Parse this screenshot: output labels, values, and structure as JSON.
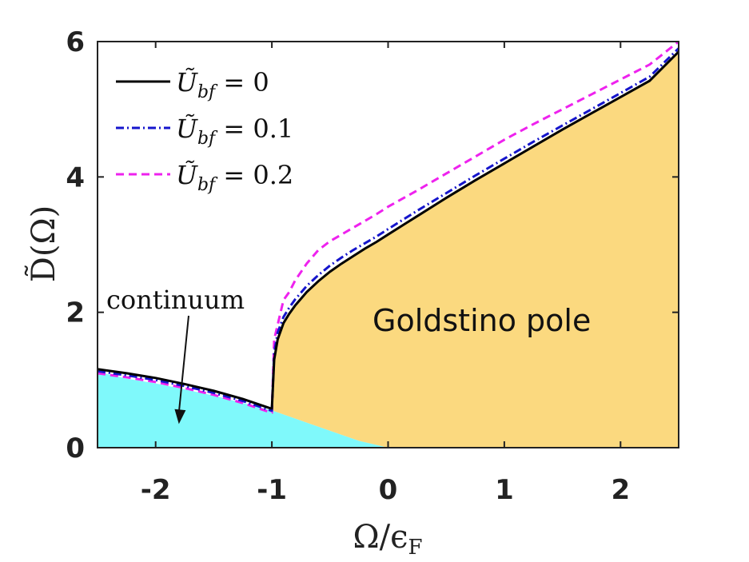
{
  "chart_data": {
    "type": "line",
    "xlabel_main": "Ω/ϵ",
    "xlabel_sub": "F",
    "ylabel": "D̃(Ω)",
    "xlim": [
      -2.5,
      2.5
    ],
    "ylim": [
      0,
      6
    ],
    "xticks": [
      -2,
      -1,
      0,
      1,
      2
    ],
    "xtick_labels": [
      "-2",
      "-1",
      "0",
      "1",
      "2"
    ],
    "yticks": [
      0,
      2,
      4,
      6
    ],
    "ytick_labels": [
      "0",
      "2",
      "4",
      "6"
    ],
    "grid": false,
    "legend_placement": "top-left",
    "legend_var": "Ũ",
    "legend_sub": "bf",
    "legend_op": "=",
    "series": [
      {
        "name": "0",
        "color": "#000000",
        "style": "solid",
        "x": [
          -2.5,
          -2.25,
          -2.0,
          -1.75,
          -1.5,
          -1.25,
          -1.01,
          -1.0,
          -0.98,
          -0.95,
          -0.9,
          -0.85,
          -0.8,
          -0.7,
          -0.6,
          -0.5,
          -0.4,
          -0.3,
          -0.2,
          -0.1,
          0.0,
          0.25,
          0.5,
          0.75,
          1.0,
          1.25,
          1.5,
          1.75,
          2.0,
          2.25,
          2.5
        ],
        "y": [
          1.16,
          1.1,
          1.03,
          0.94,
          0.84,
          0.72,
          0.58,
          0.58,
          1.3,
          1.6,
          1.84,
          1.98,
          2.1,
          2.3,
          2.46,
          2.6,
          2.72,
          2.83,
          2.94,
          3.04,
          3.15,
          3.42,
          3.69,
          3.95,
          4.2,
          4.45,
          4.7,
          4.94,
          5.18,
          5.42,
          5.85
        ]
      },
      {
        "name": "0.1",
        "color": "#1515cc",
        "style": "dashdot",
        "x": [
          -2.5,
          -2.25,
          -2.0,
          -1.75,
          -1.5,
          -1.25,
          -1.01,
          -1.0,
          -0.98,
          -0.95,
          -0.9,
          -0.85,
          -0.8,
          -0.7,
          -0.6,
          -0.5,
          -0.4,
          -0.3,
          -0.2,
          -0.1,
          0.0,
          0.25,
          0.5,
          0.75,
          1.0,
          1.25,
          1.5,
          1.75,
          2.0,
          2.25,
          2.5
        ],
        "y": [
          1.13,
          1.07,
          1.0,
          0.91,
          0.81,
          0.69,
          0.55,
          0.55,
          1.4,
          1.7,
          1.93,
          2.07,
          2.19,
          2.39,
          2.55,
          2.69,
          2.81,
          2.92,
          3.02,
          3.12,
          3.23,
          3.5,
          3.76,
          4.02,
          4.27,
          4.52,
          4.76,
          5.0,
          5.24,
          5.48,
          5.9
        ]
      },
      {
        "name": "0.2",
        "color": "#ee22ee",
        "style": "dashed",
        "x": [
          -2.5,
          -2.25,
          -2.0,
          -1.75,
          -1.5,
          -1.25,
          -1.01,
          -1.0,
          -0.98,
          -0.9,
          -0.85,
          -0.8,
          -0.7,
          -0.6,
          -0.5,
          -0.4,
          -0.3,
          -0.2,
          -0.1,
          0.0,
          0.25,
          0.5,
          0.75,
          1.0,
          1.25,
          1.5,
          1.75,
          2.0,
          2.25,
          2.5
        ],
        "y": [
          1.1,
          1.04,
          0.97,
          0.88,
          0.78,
          0.66,
          0.52,
          0.52,
          1.6,
          2.18,
          2.3,
          2.47,
          2.72,
          2.92,
          3.05,
          3.15,
          3.25,
          3.35,
          3.45,
          3.56,
          3.8,
          4.05,
          4.3,
          4.55,
          4.78,
          5.0,
          5.22,
          5.44,
          5.66,
          6.0
        ]
      }
    ],
    "continuum_region": {
      "color": "#7ff9fb",
      "x": [
        -2.5,
        -2.25,
        -2.0,
        -1.75,
        -1.5,
        -1.25,
        -1.0,
        -0.75,
        -0.5,
        -0.25,
        0.0
      ],
      "y": [
        1.12,
        1.02,
        0.95,
        0.86,
        0.77,
        0.66,
        0.55,
        0.4,
        0.25,
        0.1,
        0.0
      ]
    },
    "goldstino_region": {
      "color": "#fbd97f",
      "lower_x": [
        -1.0,
        -0.75,
        -0.5,
        -0.25,
        0.0,
        2.5
      ],
      "lower_y": [
        0.55,
        0.4,
        0.25,
        0.1,
        0.0,
        0.0
      ]
    },
    "annotations": [
      {
        "text": "continuum",
        "arrow_to_x": -1.8,
        "arrow_to_y": 0.35
      },
      {
        "text": "Goldstino pole"
      }
    ]
  }
}
